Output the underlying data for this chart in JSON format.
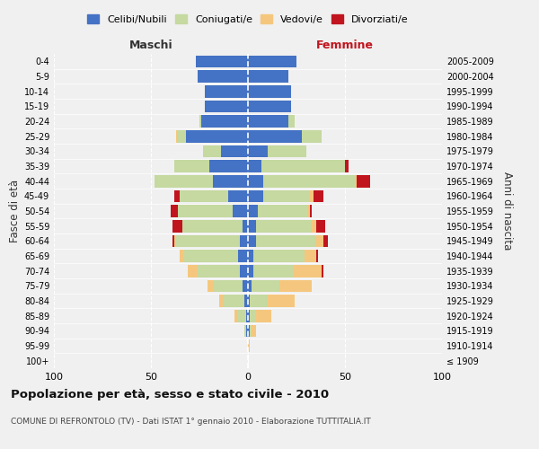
{
  "age_groups": [
    "100+",
    "95-99",
    "90-94",
    "85-89",
    "80-84",
    "75-79",
    "70-74",
    "65-69",
    "60-64",
    "55-59",
    "50-54",
    "45-49",
    "40-44",
    "35-39",
    "30-34",
    "25-29",
    "20-24",
    "15-19",
    "10-14",
    "5-9",
    "0-4"
  ],
  "birth_years": [
    "≤ 1909",
    "1910-1914",
    "1915-1919",
    "1920-1924",
    "1925-1929",
    "1930-1934",
    "1935-1939",
    "1940-1944",
    "1945-1949",
    "1950-1954",
    "1955-1959",
    "1960-1964",
    "1965-1969",
    "1970-1974",
    "1975-1979",
    "1980-1984",
    "1985-1989",
    "1990-1994",
    "1995-1999",
    "2000-2004",
    "2005-2009"
  ],
  "maschi": {
    "celibi": [
      0,
      0,
      1,
      1,
      2,
      3,
      4,
      5,
      4,
      3,
      8,
      10,
      18,
      20,
      14,
      32,
      24,
      22,
      22,
      26,
      27
    ],
    "coniugati": [
      0,
      0,
      1,
      4,
      11,
      15,
      22,
      28,
      33,
      31,
      28,
      25,
      30,
      18,
      9,
      4,
      1,
      0,
      0,
      0,
      0
    ],
    "vedovi": [
      0,
      0,
      0,
      2,
      2,
      3,
      5,
      2,
      1,
      0,
      0,
      0,
      0,
      0,
      0,
      1,
      0,
      0,
      0,
      0,
      0
    ],
    "divorziati": [
      0,
      0,
      0,
      0,
      0,
      0,
      0,
      0,
      1,
      5,
      4,
      3,
      0,
      0,
      0,
      0,
      0,
      0,
      0,
      0,
      0
    ]
  },
  "femmine": {
    "nubili": [
      0,
      0,
      1,
      1,
      1,
      2,
      3,
      3,
      4,
      4,
      5,
      8,
      8,
      7,
      10,
      28,
      21,
      22,
      22,
      21,
      25
    ],
    "coniugate": [
      0,
      0,
      1,
      3,
      9,
      14,
      20,
      26,
      31,
      29,
      26,
      24,
      47,
      43,
      20,
      10,
      3,
      0,
      0,
      0,
      0
    ],
    "vedove": [
      0,
      1,
      2,
      8,
      14,
      17,
      15,
      6,
      4,
      2,
      1,
      2,
      1,
      0,
      0,
      0,
      0,
      0,
      0,
      0,
      0
    ],
    "divorziate": [
      0,
      0,
      0,
      0,
      0,
      0,
      1,
      1,
      2,
      5,
      1,
      5,
      7,
      2,
      0,
      0,
      0,
      0,
      0,
      0,
      0
    ]
  },
  "colors": {
    "celibi_nubili": "#4472c4",
    "coniugati_e": "#c5d9a0",
    "vedovi_e": "#f5c77e",
    "divorziati_e": "#c0151e"
  },
  "xlim": 100,
  "title": "Popolazione per età, sesso e stato civile - 2010",
  "subtitle": "COMUNE DI REFRONTOLO (TV) - Dati ISTAT 1° gennaio 2010 - Elaborazione TUTTITALIA.IT",
  "ylabel_left": "Fasce di età",
  "ylabel_right": "Anni di nascita",
  "xlabel_left": "Maschi",
  "xlabel_right": "Femmine",
  "background_color": "#f0f0f0"
}
